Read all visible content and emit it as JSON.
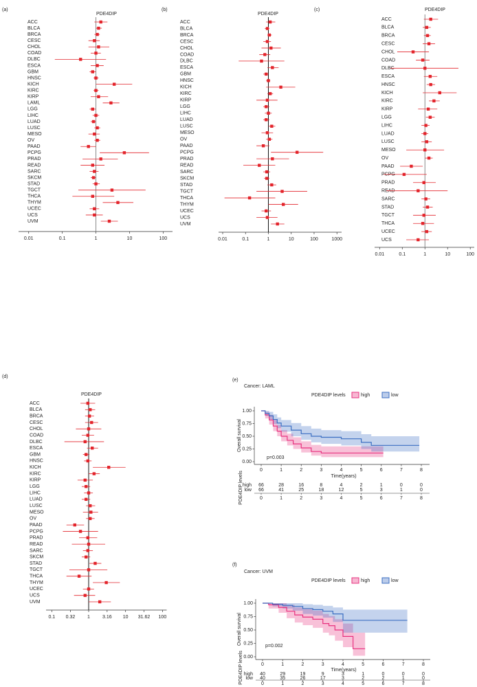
{
  "chart_data": [
    {
      "type": "forest",
      "label": "(a)",
      "title": "PDE4DIP",
      "color": "#e3242b",
      "reference_line": 1,
      "categories": [
        "ACC",
        "BLCA",
        "BRCA",
        "CESC",
        "CHOL",
        "COAD",
        "DLBC",
        "ESCA",
        "GBM",
        "HNSC",
        "KICH",
        "KIRC",
        "KIRP",
        "LAML",
        "LGG",
        "LIHC",
        "LUAD",
        "LUSC",
        "MESO",
        "OV",
        "PAAD",
        "PCPG",
        "PRAD",
        "READ",
        "SARC",
        "SKCM",
        "STAD",
        "TGCT",
        "THCA",
        "THYM",
        "UCEC",
        "UCS",
        "UVM"
      ],
      "values": [
        1.4,
        1.2,
        1.1,
        0.9,
        1.2,
        1.0,
        0.35,
        1.1,
        0.8,
        1.0,
        3.5,
        1.0,
        1.2,
        2.8,
        0.8,
        1.0,
        0.85,
        1.1,
        0.9,
        1.1,
        0.6,
        7,
        1.4,
        0.8,
        0.9,
        0.85,
        1.0,
        3,
        0.8,
        4.5,
        0.9,
        0.9,
        2.5
      ],
      "ci_low": [
        0.9,
        1.0,
        0.9,
        0.6,
        0.6,
        0.7,
        0.06,
        0.7,
        0.65,
        0.85,
        1.0,
        0.85,
        0.7,
        1.6,
        0.65,
        0.8,
        0.7,
        0.9,
        0.6,
        0.9,
        0.35,
        1.3,
        0.4,
        0.35,
        0.65,
        0.7,
        0.8,
        0.3,
        0.2,
        1.6,
        0.65,
        0.5,
        1.4
      ],
      "ci_high": [
        2.2,
        1.5,
        1.3,
        1.3,
        2.5,
        1.4,
        2.0,
        1.7,
        1.0,
        1.2,
        12,
        1.2,
        2.3,
        5,
        1.0,
        1.25,
        1.0,
        1.35,
        1.3,
        1.35,
        1.0,
        38,
        4.5,
        1.8,
        1.2,
        1.0,
        1.3,
        30,
        3.5,
        13,
        1.25,
        1.6,
        4.5
      ],
      "log_x": true,
      "xlim": [
        0.005,
        190
      ],
      "xticks": [
        0.01,
        0.1,
        1,
        10,
        100
      ]
    },
    {
      "type": "forest",
      "label": "(b)",
      "title": "PDE4DIP",
      "color": "#e3242b",
      "reference_line": 1,
      "categories": [
        "ACC",
        "BLCA",
        "BRCA",
        "CESC",
        "CHOL",
        "COAD",
        "DLBC",
        "ESCA",
        "GBM",
        "HNSC",
        "KICH",
        "KIRC",
        "KIRP",
        "LGG",
        "LIHC",
        "LUAD",
        "LUSC",
        "MESO",
        "OV",
        "PAAD",
        "PCPG",
        "PRAD",
        "READ",
        "SARC",
        "SKCM",
        "STAD",
        "TGCT",
        "THCA",
        "THYM",
        "UCEC",
        "UCS",
        "UVM"
      ],
      "values": [
        1.2,
        0.9,
        1.1,
        0.9,
        1.3,
        0.7,
        0.5,
        1.5,
        0.8,
        1.0,
        3.5,
        1.2,
        0.9,
        0.8,
        1.0,
        0.8,
        1.4,
        0.9,
        1.1,
        0.6,
        18,
        1.5,
        0.4,
        0.85,
        0.85,
        1.4,
        4,
        0.15,
        4.5,
        0.8,
        0.9,
        2.5
      ],
      "ci_low": [
        0.8,
        0.7,
        0.9,
        0.6,
        0.5,
        0.4,
        0.05,
        0.9,
        0.6,
        0.8,
        0.8,
        0.9,
        0.3,
        0.6,
        0.7,
        0.6,
        1.0,
        0.5,
        0.8,
        0.3,
        1.3,
        0.3,
        0.08,
        0.6,
        0.65,
        0.9,
        0.3,
        0.012,
        1.0,
        0.5,
        0.3,
        1.3
      ],
      "ci_high": [
        2.0,
        1.1,
        1.4,
        1.3,
        3.5,
        1.2,
        5,
        2.8,
        1.0,
        1.2,
        15,
        1.6,
        2.5,
        1.1,
        1.4,
        1.1,
        2.0,
        1.6,
        1.5,
        1.1,
        250,
        8,
        2.0,
        1.2,
        1.1,
        2.2,
        50,
        2.0,
        20,
        1.3,
        2.5,
        5
      ],
      "log_x": true,
      "xlim": [
        0.0066,
        1600
      ],
      "xticks": [
        0.01,
        0.1,
        1,
        10,
        100,
        1000
      ]
    },
    {
      "type": "forest",
      "label": "(c)",
      "title": "PDE4DIP",
      "color": "#e3242b",
      "reference_line": 1,
      "categories": [
        "ACC",
        "BLCA",
        "BRCA",
        "CESC",
        "CHOL",
        "COAD",
        "DLBC",
        "ESCA",
        "HNSC",
        "KICH",
        "KIRC",
        "KIRP",
        "LGG",
        "LIHC",
        "LUAD",
        "LUSC",
        "MESO",
        "OV",
        "PAAD",
        "PCPG",
        "PRAD",
        "READ",
        "SARC",
        "STAD",
        "TGCT",
        "THCA",
        "UCEC",
        "UCS"
      ],
      "values": [
        1.8,
        1.2,
        1.3,
        1.5,
        0.3,
        0.8,
        1.0,
        1.7,
        1.8,
        4.5,
        2.5,
        1.4,
        1.7,
        1.1,
        1.0,
        1.2,
        1.0,
        1.5,
        0.25,
        0.12,
        0.9,
        0.5,
        1.1,
        1.3,
        0.9,
        0.8,
        1.2,
        0.5
      ],
      "ci_low": [
        0.9,
        0.8,
        0.9,
        0.8,
        0.06,
        0.4,
        0.03,
        0.9,
        1.2,
        0.8,
        1.5,
        0.5,
        1.1,
        0.7,
        0.7,
        0.7,
        0.15,
        1.0,
        0.08,
        0.015,
        0.3,
        0.02,
        0.7,
        0.8,
        0.3,
        0.3,
        0.7,
        0.15
      ],
      "ci_high": [
        3.8,
        1.8,
        1.8,
        2.8,
        1.5,
        1.6,
        30,
        3.5,
        2.8,
        25,
        4.5,
        3.5,
        2.7,
        1.6,
        1.4,
        2,
        7,
        2.2,
        0.8,
        1.2,
        3,
        10,
        1.7,
        2.2,
        3,
        2.5,
        2,
        1.5
      ],
      "log_x": true,
      "xlim": [
        0.006,
        150
      ],
      "xticks": [
        0.01,
        0.1,
        1,
        10,
        100
      ]
    },
    {
      "type": "forest",
      "label": "(d)",
      "title": "PDE4DIP",
      "color": "#e3242b",
      "reference_line": 1,
      "categories": [
        "ACC",
        "BLCA",
        "BRCA",
        "CESC",
        "CHOL",
        "COAD",
        "DLBC",
        "ESCA",
        "GBM",
        "HNSC",
        "KICH",
        "KIRC",
        "KIRP",
        "LGG",
        "LIHC",
        "LUAD",
        "LUSC",
        "MESO",
        "OV",
        "PAAD",
        "PCPG",
        "PRAD",
        "READ",
        "SARC",
        "SKCM",
        "STAD",
        "TGCT",
        "THCA",
        "THYM",
        "UCEC",
        "UCS",
        "UVM"
      ],
      "values": [
        0.95,
        1.1,
        1.05,
        1.2,
        1.0,
        0.95,
        0.8,
        1.25,
        0.85,
        0.95,
        3.5,
        1.4,
        0.8,
        0.85,
        1.0,
        0.85,
        1.1,
        1.15,
        1.1,
        0.42,
        0.6,
        0.95,
        1.0,
        0.95,
        0.85,
        1.5,
        1.0,
        0.55,
        3.0,
        1.0,
        0.8,
        2.0
      ],
      "ci_low": [
        0.6,
        0.8,
        0.8,
        0.8,
        0.45,
        0.65,
        0.22,
        0.9,
        0.7,
        0.75,
        1.3,
        1.0,
        0.5,
        0.65,
        0.75,
        0.65,
        0.85,
        0.7,
        0.85,
        0.25,
        0.2,
        0.55,
        0.35,
        0.7,
        0.65,
        1.05,
        0.3,
        0.25,
        1.3,
        0.7,
        0.4,
        1.0
      ],
      "ci_high": [
        1.5,
        1.5,
        1.4,
        1.8,
        2.2,
        1.4,
        2.6,
        1.8,
        1.05,
        1.2,
        10,
        2.0,
        1.3,
        1.1,
        1.3,
        1.1,
        1.5,
        1.8,
        1.45,
        0.75,
        1.8,
        1.7,
        2.8,
        1.3,
        1.1,
        2.2,
        3.2,
        1.2,
        7,
        1.4,
        1.5,
        4
      ],
      "log_x": true,
      "xlim": [
        0.07,
        130
      ],
      "xticks": [
        0.1,
        0.32,
        1,
        3.16,
        10,
        31.62,
        100
      ]
    },
    {
      "type": "survival",
      "label": "(e)",
      "title": "Cancer: LAML",
      "legend_title": "PDE4DIP levels",
      "x_label": "Time(years)",
      "y_label": "Overall survival",
      "annotation": "p=0.003",
      "xlim": [
        0,
        8
      ],
      "xticks": [
        0,
        1,
        2,
        3,
        4,
        5,
        6,
        7,
        8
      ],
      "ylim": [
        0,
        1
      ],
      "yticks": [
        {
          "value": 0,
          "label": "0.00"
        },
        {
          "value": 0.25,
          "label": "0.25"
        },
        {
          "value": 0.5,
          "label": "0.50"
        },
        {
          "value": 0.75,
          "label": "0.75"
        },
        {
          "value": 1,
          "label": "1.00"
        }
      ],
      "series": [
        {
          "name": "high",
          "color": "#e7317e",
          "x": [
            0,
            0.2,
            0.4,
            0.6,
            0.8,
            1,
            1.3,
            1.6,
            2,
            2.5,
            3,
            4,
            5,
            6.1
          ],
          "values": [
            1,
            0.92,
            0.82,
            0.7,
            0.6,
            0.5,
            0.42,
            0.35,
            0.27,
            0.2,
            0.17,
            0.17,
            0.17,
            0.17
          ],
          "lower": [
            1,
            0.85,
            0.73,
            0.6,
            0.5,
            0.4,
            0.32,
            0.25,
            0.18,
            0.12,
            0.09,
            0.09,
            0.09,
            0.09
          ],
          "upper": [
            1,
            0.98,
            0.92,
            0.82,
            0.72,
            0.62,
            0.55,
            0.48,
            0.4,
            0.33,
            0.3,
            0.3,
            0.3,
            0.3
          ],
          "at_risk": [
            66,
            28,
            16,
            8,
            4,
            2,
            1,
            0,
            0
          ]
        },
        {
          "name": "low",
          "color": "#3b6ec2",
          "x": [
            0,
            0.2,
            0.4,
            0.6,
            0.8,
            1,
            1.5,
            2,
            2.5,
            3,
            4,
            5,
            5.5,
            7.9
          ],
          "values": [
            1,
            0.95,
            0.9,
            0.83,
            0.76,
            0.7,
            0.62,
            0.55,
            0.5,
            0.48,
            0.45,
            0.38,
            0.32,
            0.32
          ],
          "lower": [
            1,
            0.9,
            0.83,
            0.74,
            0.66,
            0.59,
            0.5,
            0.43,
            0.38,
            0.35,
            0.32,
            0.25,
            0.2,
            0.2
          ],
          "upper": [
            1,
            1,
            0.98,
            0.93,
            0.87,
            0.82,
            0.76,
            0.7,
            0.65,
            0.62,
            0.6,
            0.54,
            0.5,
            0.5
          ],
          "at_risk": [
            66,
            41,
            25,
            18,
            12,
            5,
            3,
            1,
            0
          ]
        }
      ]
    },
    {
      "type": "survival",
      "label": "(f)",
      "title": "Cancer: UVM",
      "legend_title": "PDE4DIP levels",
      "x_label": "Time(years)",
      "y_label": "Overall survival",
      "annotation": "p=0.002",
      "xlim": [
        0,
        8
      ],
      "xticks": [
        0,
        1,
        2,
        3,
        4,
        5,
        6,
        7,
        8
      ],
      "ylim": [
        0,
        1
      ],
      "yticks": [
        {
          "value": 0,
          "label": "0.00"
        },
        {
          "value": 0.25,
          "label": "0.25"
        },
        {
          "value": 0.5,
          "label": "0.50"
        },
        {
          "value": 0.75,
          "label": "0.75"
        },
        {
          "value": 1,
          "label": "1.00"
        }
      ],
      "series": [
        {
          "name": "high",
          "color": "#e7317e",
          "x": [
            0,
            0.3,
            0.8,
            1.2,
            1.6,
            2,
            2.5,
            3,
            3.3,
            3.6,
            4,
            4.5,
            5.1
          ],
          "values": [
            1,
            0.97,
            0.92,
            0.85,
            0.78,
            0.74,
            0.7,
            0.62,
            0.58,
            0.5,
            0.38,
            0.15,
            0.15
          ],
          "lower": [
            1,
            0.9,
            0.82,
            0.72,
            0.64,
            0.59,
            0.54,
            0.45,
            0.4,
            0.3,
            0.18,
            0.02,
            0.02
          ],
          "upper": [
            1,
            1,
            1,
            0.97,
            0.92,
            0.89,
            0.86,
            0.8,
            0.76,
            0.7,
            0.62,
            0.45,
            0.45
          ],
          "at_risk": [
            40,
            29,
            19,
            9,
            3,
            1,
            0,
            0,
            0
          ]
        },
        {
          "name": "low",
          "color": "#3b6ec2",
          "x": [
            0,
            0.5,
            1,
            1.5,
            2,
            2.5,
            3,
            3.5,
            4,
            5,
            7.2
          ],
          "values": [
            1,
            0.98,
            0.96,
            0.94,
            0.9,
            0.88,
            0.85,
            0.8,
            0.68,
            0.68,
            0.68
          ],
          "lower": [
            1,
            0.94,
            0.9,
            0.86,
            0.8,
            0.77,
            0.73,
            0.65,
            0.45,
            0.45,
            0.45
          ],
          "upper": [
            1,
            1,
            1,
            1,
            0.98,
            0.97,
            0.95,
            0.92,
            0.88,
            0.88,
            0.88
          ],
          "at_risk": [
            40,
            35,
            26,
            17,
            3,
            2,
            2,
            1,
            0
          ]
        }
      ]
    }
  ]
}
